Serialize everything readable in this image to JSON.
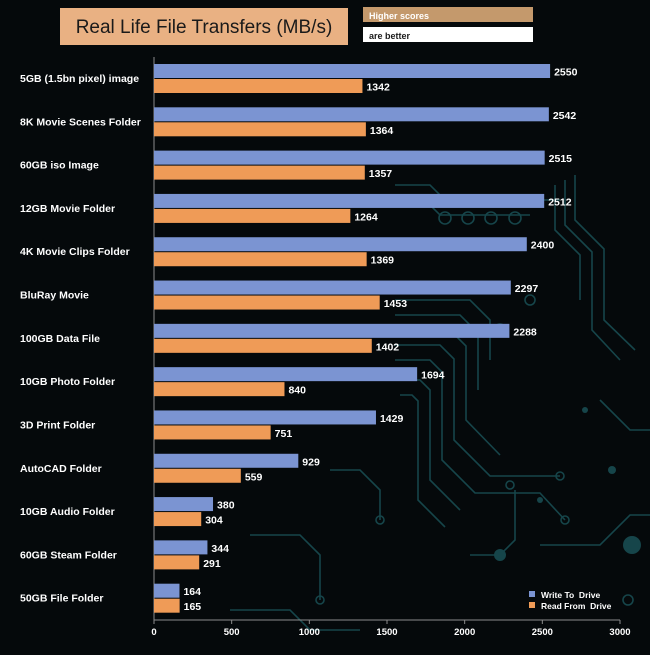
{
  "chart_data": {
    "type": "bar",
    "orientation": "horizontal",
    "title": "Real Life File Transfers (MB/s)",
    "notes": [
      "Higher scores",
      "are better"
    ],
    "categories": [
      "5GB (1.5bn pixel) image",
      "8K Movie Scenes Folder",
      "60GB iso Image",
      "12GB Movie Folder",
      "4K Movie Clips Folder",
      "BluRay Movie",
      "100GB Data File",
      "10GB Photo Folder",
      "3D Print Folder",
      "AutoCAD Folder",
      "10GB Audio Folder",
      "60GB Steam Folder",
      "50GB File Folder"
    ],
    "series": [
      {
        "name": "Write To  Drive",
        "color": "#7b94d2",
        "values": [
          2550,
          2542,
          2515,
          2512,
          2400,
          2297,
          2288,
          1694,
          1429,
          929,
          380,
          344,
          164
        ]
      },
      {
        "name": "Read From  Drive",
        "color": "#ef9b57",
        "values": [
          1342,
          1364,
          1357,
          1264,
          1369,
          1453,
          1402,
          840,
          751,
          559,
          304,
          291,
          165
        ]
      }
    ],
    "xlim": [
      0,
      3000
    ],
    "xticks": [
      "0",
      "500",
      "1000",
      "1500",
      "2000",
      "2500",
      "3000"
    ],
    "legend_position": "bottom-right",
    "grid": false
  },
  "colors": {
    "background": "#05090b",
    "circuit": "#16454a",
    "title_box": "#e9b183",
    "note_box": "#c4996c",
    "axis": "#8c8c8c"
  }
}
